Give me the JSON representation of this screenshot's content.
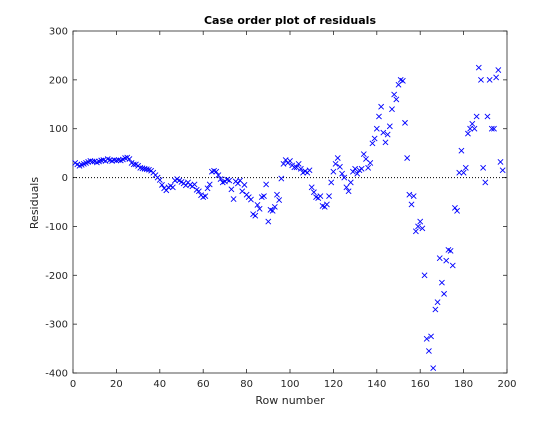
{
  "chart_data": {
    "type": "scatter",
    "title": "Case order plot of residuals",
    "xlabel": "Row number",
    "ylabel": "Residuals",
    "xlim": [
      0,
      200
    ],
    "ylim": [
      -400,
      300
    ],
    "xticks": [
      0,
      20,
      40,
      60,
      80,
      100,
      120,
      140,
      160,
      180,
      200
    ],
    "yticks": [
      -400,
      -300,
      -200,
      -100,
      0,
      100,
      200,
      300
    ],
    "marker": "x",
    "marker_color": "#0000ff",
    "reference_line": {
      "y": 0,
      "style": "dotted",
      "color": "#000000"
    },
    "grid": false,
    "legend": "none",
    "points": [
      [
        1,
        30
      ],
      [
        2,
        27
      ],
      [
        3,
        24
      ],
      [
        4,
        26
      ],
      [
        5,
        28
      ],
      [
        6,
        30
      ],
      [
        7,
        32
      ],
      [
        8,
        34
      ],
      [
        9,
        33
      ],
      [
        10,
        33
      ],
      [
        11,
        31
      ],
      [
        12,
        33
      ],
      [
        13,
        35
      ],
      [
        14,
        36
      ],
      [
        15,
        34
      ],
      [
        16,
        38
      ],
      [
        17,
        36
      ],
      [
        18,
        34
      ],
      [
        19,
        36
      ],
      [
        20,
        35
      ],
      [
        21,
        36
      ],
      [
        22,
        35
      ],
      [
        23,
        37
      ],
      [
        24,
        40
      ],
      [
        25,
        41
      ],
      [
        26,
        38
      ],
      [
        27,
        30
      ],
      [
        28,
        27
      ],
      [
        29,
        27
      ],
      [
        30,
        24
      ],
      [
        31,
        20
      ],
      [
        32,
        19
      ],
      [
        33,
        18
      ],
      [
        34,
        17
      ],
      [
        35,
        16
      ],
      [
        36,
        14
      ],
      [
        37,
        10
      ],
      [
        38,
        5
      ],
      [
        39,
        0
      ],
      [
        40,
        -5
      ],
      [
        41,
        -15
      ],
      [
        42,
        -22
      ],
      [
        43,
        -26
      ],
      [
        44,
        -20
      ],
      [
        45,
        -17
      ],
      [
        46,
        -20
      ],
      [
        47,
        -6
      ],
      [
        48,
        -3
      ],
      [
        49,
        -6
      ],
      [
        50,
        -9
      ],
      [
        51,
        -12
      ],
      [
        52,
        -16
      ],
      [
        53,
        -10
      ],
      [
        54,
        -15
      ],
      [
        55,
        -18
      ],
      [
        56,
        -14
      ],
      [
        57,
        -25
      ],
      [
        58,
        -28
      ],
      [
        59,
        -36
      ],
      [
        60,
        -40
      ],
      [
        61,
        -38
      ],
      [
        62,
        -22
      ],
      [
        63,
        -14
      ],
      [
        64,
        12
      ],
      [
        65,
        14
      ],
      [
        66,
        12
      ],
      [
        67,
        5
      ],
      [
        68,
        -3
      ],
      [
        69,
        -10
      ],
      [
        70,
        -8
      ],
      [
        71,
        -4
      ],
      [
        72,
        -6
      ],
      [
        73,
        -24
      ],
      [
        74,
        -44
      ],
      [
        75,
        -8
      ],
      [
        76,
        -12
      ],
      [
        77,
        -6
      ],
      [
        78,
        -28
      ],
      [
        79,
        -15
      ],
      [
        80,
        -35
      ],
      [
        81,
        -40
      ],
      [
        82,
        -45
      ],
      [
        83,
        -75
      ],
      [
        84,
        -78
      ],
      [
        85,
        -56
      ],
      [
        86,
        -64
      ],
      [
        87,
        -40
      ],
      [
        88,
        -38
      ],
      [
        89,
        -14
      ],
      [
        90,
        -90
      ],
      [
        91,
        -66
      ],
      [
        92,
        -68
      ],
      [
        93,
        -60
      ],
      [
        94,
        -35
      ],
      [
        95,
        -46
      ],
      [
        96,
        -2
      ],
      [
        97,
        28
      ],
      [
        98,
        36
      ],
      [
        99,
        30
      ],
      [
        100,
        34
      ],
      [
        101,
        25
      ],
      [
        102,
        21
      ],
      [
        103,
        21
      ],
      [
        104,
        28
      ],
      [
        105,
        18
      ],
      [
        106,
        10
      ],
      [
        107,
        13
      ],
      [
        108,
        10
      ],
      [
        109,
        15
      ],
      [
        110,
        -20
      ],
      [
        111,
        -30
      ],
      [
        112,
        -40
      ],
      [
        113,
        -42
      ],
      [
        114,
        -38
      ],
      [
        115,
        -58
      ],
      [
        116,
        -60
      ],
      [
        117,
        -55
      ],
      [
        118,
        -38
      ],
      [
        119,
        -10
      ],
      [
        120,
        12
      ],
      [
        121,
        28
      ],
      [
        122,
        40
      ],
      [
        123,
        22
      ],
      [
        124,
        8
      ],
      [
        125,
        0
      ],
      [
        126,
        -20
      ],
      [
        127,
        -28
      ],
      [
        128,
        -10
      ],
      [
        129,
        12
      ],
      [
        130,
        18
      ],
      [
        131,
        8
      ],
      [
        132,
        15
      ],
      [
        133,
        18
      ],
      [
        134,
        48
      ],
      [
        135,
        38
      ],
      [
        136,
        20
      ],
      [
        137,
        30
      ],
      [
        138,
        70
      ],
      [
        139,
        80
      ],
      [
        140,
        100
      ],
      [
        141,
        125
      ],
      [
        142,
        145
      ],
      [
        143,
        92
      ],
      [
        144,
        72
      ],
      [
        145,
        88
      ],
      [
        146,
        105
      ],
      [
        147,
        140
      ],
      [
        148,
        170
      ],
      [
        149,
        160
      ],
      [
        150,
        190
      ],
      [
        151,
        200
      ],
      [
        152,
        198
      ],
      [
        153,
        112
      ],
      [
        154,
        40
      ],
      [
        155,
        -35
      ],
      [
        156,
        -55
      ],
      [
        157,
        -38
      ],
      [
        158,
        -110
      ],
      [
        159,
        -100
      ],
      [
        160,
        -90
      ],
      [
        161,
        -104
      ],
      [
        162,
        -200
      ],
      [
        163,
        -330
      ],
      [
        164,
        -355
      ],
      [
        165,
        -325
      ],
      [
        166,
        -390
      ],
      [
        167,
        -270
      ],
      [
        168,
        -255
      ],
      [
        169,
        -165
      ],
      [
        170,
        -215
      ],
      [
        171,
        -238
      ],
      [
        172,
        -170
      ],
      [
        173,
        -148
      ],
      [
        174,
        -150
      ],
      [
        175,
        -180
      ],
      [
        176,
        -62
      ],
      [
        177,
        -68
      ],
      [
        178,
        10
      ],
      [
        179,
        55
      ],
      [
        180,
        10
      ],
      [
        181,
        20
      ],
      [
        182,
        90
      ],
      [
        183,
        100
      ],
      [
        184,
        110
      ],
      [
        185,
        100
      ],
      [
        186,
        125
      ],
      [
        187,
        225
      ],
      [
        188,
        200
      ],
      [
        189,
        20
      ],
      [
        190,
        -10
      ],
      [
        191,
        125
      ],
      [
        192,
        200
      ],
      [
        193,
        100
      ],
      [
        194,
        100
      ],
      [
        195,
        205
      ],
      [
        196,
        220
      ],
      [
        197,
        32
      ],
      [
        198,
        15
      ]
    ]
  }
}
